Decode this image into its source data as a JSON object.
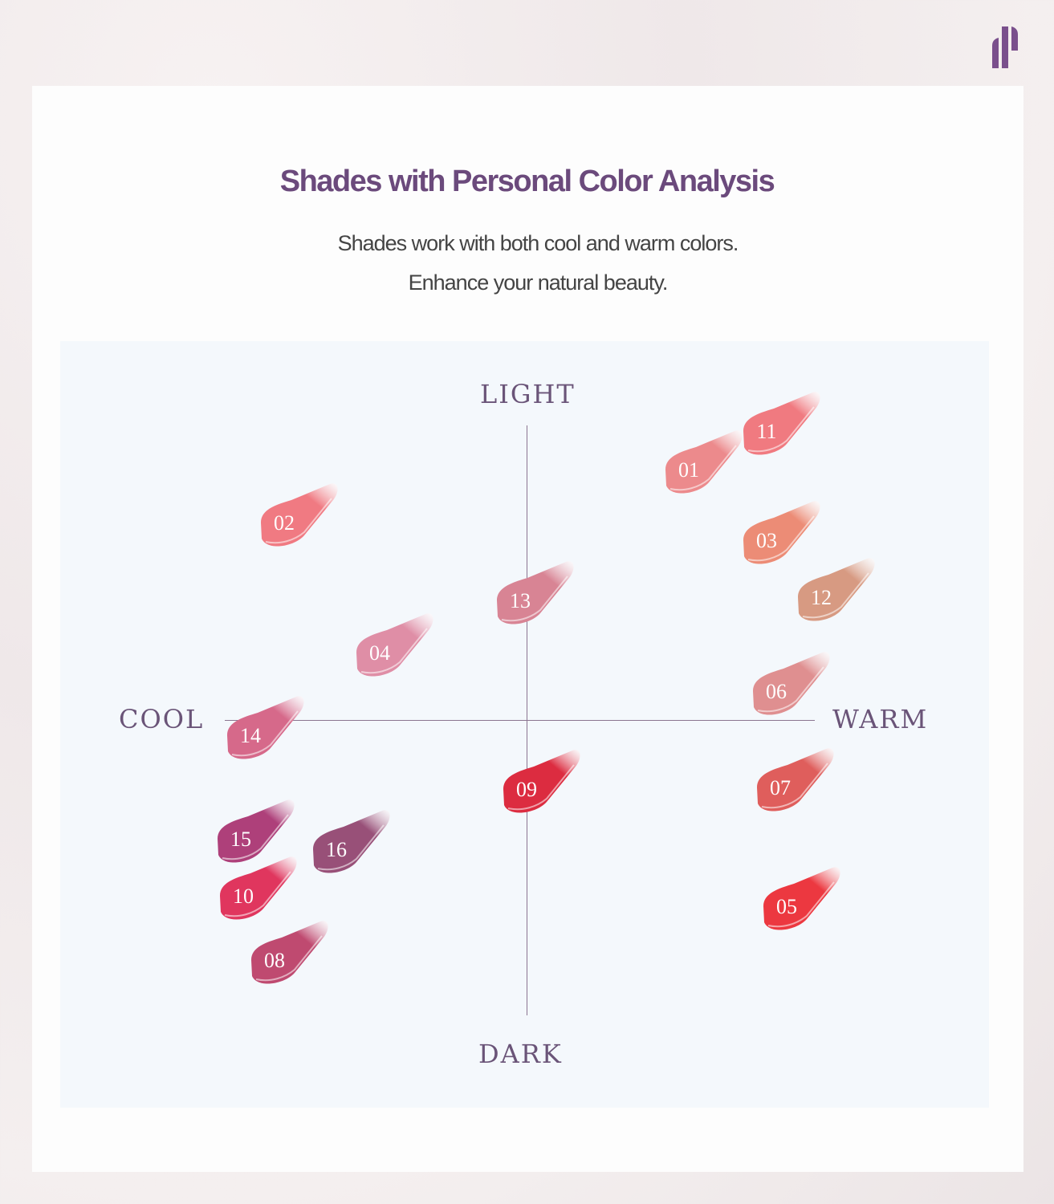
{
  "brand": {
    "logo": "brand-logo-bars",
    "color": "#7a4f8c"
  },
  "header": {
    "title": "Shades with Personal Color Analysis",
    "subtitle_line1": "Shades work with both cool and warm colors.",
    "subtitle_line2": "Enhance your natural beauty."
  },
  "diagram": {
    "axes": {
      "top": "LIGHT",
      "bottom": "DARK",
      "left": "COOL",
      "right": "WARM"
    },
    "shades": [
      {
        "label": "01",
        "color": "#ec8a8c"
      },
      {
        "label": "02",
        "color": "#f07a82"
      },
      {
        "label": "03",
        "color": "#ec8c76"
      },
      {
        "label": "04",
        "color": "#df8ea6"
      },
      {
        "label": "05",
        "color": "#ec3840"
      },
      {
        "label": "06",
        "color": "#df8f90"
      },
      {
        "label": "07",
        "color": "#df5e5c"
      },
      {
        "label": "08",
        "color": "#bf4a70"
      },
      {
        "label": "09",
        "color": "#dc2c40"
      },
      {
        "label": "10",
        "color": "#e0365e"
      },
      {
        "label": "11",
        "color": "#f07a80"
      },
      {
        "label": "12",
        "color": "#d79a82"
      },
      {
        "label": "13",
        "color": "#d88494"
      },
      {
        "label": "14",
        "color": "#d6698a"
      },
      {
        "label": "15",
        "color": "#ae407a"
      },
      {
        "label": "16",
        "color": "#985078"
      }
    ]
  }
}
